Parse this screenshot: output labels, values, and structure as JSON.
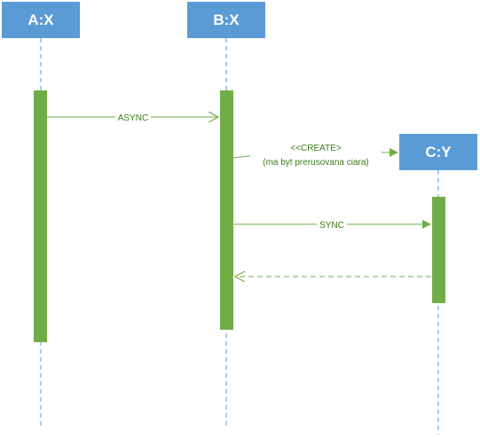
{
  "colors": {
    "head_fill": "#5b9bd5",
    "head_text": "#ffffff",
    "lifeline": "#5b9bd5",
    "activation": "#70ad47",
    "message": "#70ad47",
    "label": "#3a7a1a"
  },
  "lifelines": [
    {
      "id": "a",
      "label": "A:X"
    },
    {
      "id": "b",
      "label": "B:X"
    },
    {
      "id": "c",
      "label": "C:Y"
    }
  ],
  "messages": [
    {
      "id": "async",
      "label": "ASYNC",
      "from": "A:X",
      "to": "B:X",
      "style": "async"
    },
    {
      "id": "create",
      "label_line1": "<<CREATE>",
      "label_line2": "(ma byt prerusovana ciara)",
      "from": "B:X",
      "to": "C:Y",
      "style": "create"
    },
    {
      "id": "sync",
      "label": "SYNC",
      "from": "B:X",
      "to": "C:Y",
      "style": "sync"
    },
    {
      "id": "return",
      "label": "",
      "from": "C:Y",
      "to": "B:X",
      "style": "return"
    }
  ]
}
